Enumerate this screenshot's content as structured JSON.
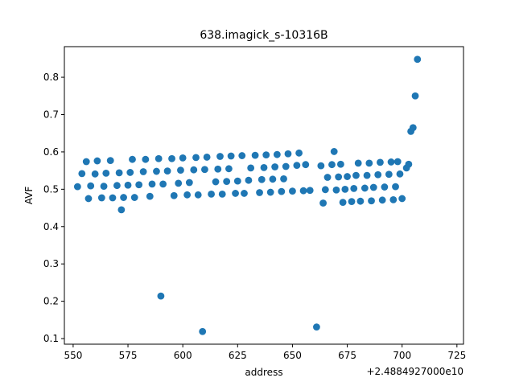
{
  "chart_data": {
    "type": "scatter",
    "title": "638.imagick_s-10316B",
    "xlabel": "address",
    "ylabel": "AVF",
    "x_offset_label": "+2.4884927000e10",
    "xlim": [
      546,
      728
    ],
    "ylim": [
      0.085,
      0.882
    ],
    "xticks": [
      550,
      575,
      600,
      625,
      650,
      675,
      700,
      725
    ],
    "yticks": [
      0.1,
      0.2,
      0.3,
      0.4,
      0.5,
      0.6,
      0.7,
      0.8
    ],
    "ytick_labels": [
      "0.1",
      "0.2",
      "0.3",
      "0.4",
      "0.5",
      "0.6",
      "0.7",
      "0.8"
    ],
    "grid": false,
    "legend": "none",
    "marker_color": "#1f77b4",
    "series": [
      {
        "points": [
          [
            552,
            0.507
          ],
          [
            554,
            0.542
          ],
          [
            556,
            0.574
          ],
          [
            557,
            0.475
          ],
          [
            558,
            0.509
          ],
          [
            560,
            0.541
          ],
          [
            561,
            0.576
          ],
          [
            563,
            0.477
          ],
          [
            564,
            0.508
          ],
          [
            565,
            0.543
          ],
          [
            567,
            0.577
          ],
          [
            568,
            0.477
          ],
          [
            570,
            0.51
          ],
          [
            571,
            0.544
          ],
          [
            572,
            0.445
          ],
          [
            573,
            0.478
          ],
          [
            575,
            0.511
          ],
          [
            576,
            0.545
          ],
          [
            577,
            0.58
          ],
          [
            578,
            0.478
          ],
          [
            580,
            0.512
          ],
          [
            582,
            0.547
          ],
          [
            583,
            0.58
          ],
          [
            585,
            0.481
          ],
          [
            586,
            0.514
          ],
          [
            588,
            0.548
          ],
          [
            589,
            0.582
          ],
          [
            590,
            0.214
          ],
          [
            591,
            0.514
          ],
          [
            593,
            0.549
          ],
          [
            595,
            0.582
          ],
          [
            596,
            0.483
          ],
          [
            598,
            0.516
          ],
          [
            599,
            0.551
          ],
          [
            600,
            0.584
          ],
          [
            602,
            0.485
          ],
          [
            603,
            0.518
          ],
          [
            605,
            0.552
          ],
          [
            606,
            0.585
          ],
          [
            607,
            0.485
          ],
          [
            609,
            0.119
          ],
          [
            610,
            0.553
          ],
          [
            611,
            0.586
          ],
          [
            613,
            0.487
          ],
          [
            615,
            0.52
          ],
          [
            616,
            0.554
          ],
          [
            617,
            0.588
          ],
          [
            618,
            0.487
          ],
          [
            620,
            0.521
          ],
          [
            621,
            0.555
          ],
          [
            622,
            0.589
          ],
          [
            624,
            0.489
          ],
          [
            625,
            0.522
          ],
          [
            627,
            0.59
          ],
          [
            628,
            0.489
          ],
          [
            630,
            0.524
          ],
          [
            631,
            0.557
          ],
          [
            633,
            0.591
          ],
          [
            635,
            0.491
          ],
          [
            636,
            0.526
          ],
          [
            637,
            0.558
          ],
          [
            638,
            0.592
          ],
          [
            640,
            0.492
          ],
          [
            641,
            0.527
          ],
          [
            642,
            0.56
          ],
          [
            643,
            0.593
          ],
          [
            645,
            0.494
          ],
          [
            646,
            0.528
          ],
          [
            647,
            0.561
          ],
          [
            648,
            0.595
          ],
          [
            650,
            0.495
          ],
          [
            652,
            0.564
          ],
          [
            653,
            0.597
          ],
          [
            655,
            0.496
          ],
          [
            656,
            0.566
          ],
          [
            658,
            0.497
          ],
          [
            661,
            0.131
          ],
          [
            663,
            0.563
          ],
          [
            664,
            0.463
          ],
          [
            665,
            0.499
          ],
          [
            666,
            0.532
          ],
          [
            668,
            0.566
          ],
          [
            669,
            0.601
          ],
          [
            670,
            0.498
          ],
          [
            671,
            0.533
          ],
          [
            672,
            0.567
          ],
          [
            673,
            0.465
          ],
          [
            674,
            0.5
          ],
          [
            675,
            0.534
          ],
          [
            677,
            0.467
          ],
          [
            678,
            0.502
          ],
          [
            679,
            0.537
          ],
          [
            680,
            0.57
          ],
          [
            681,
            0.468
          ],
          [
            683,
            0.503
          ],
          [
            684,
            0.537
          ],
          [
            685,
            0.57
          ],
          [
            686,
            0.469
          ],
          [
            687,
            0.505
          ],
          [
            689,
            0.539
          ],
          [
            690,
            0.572
          ],
          [
            691,
            0.471
          ],
          [
            692,
            0.506
          ],
          [
            694,
            0.54
          ],
          [
            695,
            0.573
          ],
          [
            696,
            0.472
          ],
          [
            697,
            0.507
          ],
          [
            698,
            0.574
          ],
          [
            699,
            0.541
          ],
          [
            700,
            0.475
          ],
          [
            702,
            0.557
          ],
          [
            703,
            0.567
          ],
          [
            704,
            0.655
          ],
          [
            705,
            0.665
          ],
          [
            706,
            0.75
          ],
          [
            707,
            0.848
          ]
        ]
      }
    ]
  }
}
